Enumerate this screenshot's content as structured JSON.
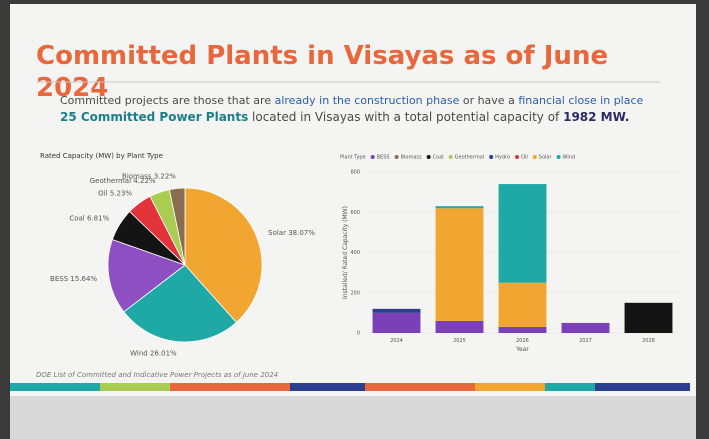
{
  "slide": {
    "title": "Committed Plants in Visayas as of June 2024",
    "description": [
      "Committed projects are those that are ",
      "already in the construction phase",
      " or have a ",
      "financial close in place"
    ],
    "summary": [
      "25 Committed Power Plants",
      " located in Visayas with a total potential capacity of ",
      "1982 MW."
    ],
    "footnote": "DOE List of Committed and Indicative Power Projects as of June 2024"
  },
  "chart_data": [
    {
      "type": "pie",
      "title": "Rated Capacity (MW) by Plant Type",
      "categories": [
        "Solar",
        "Wind",
        "BESS",
        "Coal",
        "Oil",
        "Geothermal",
        "Biomass"
      ],
      "values": [
        38.07,
        26.01,
        15.64,
        6.81,
        5.23,
        4.22,
        3.22
      ],
      "value_labels": [
        "38.07%",
        "26.01%",
        "15.64%",
        "6.81%",
        "5.23%",
        "4.22%",
        "3.22%"
      ],
      "colors": [
        "#f2a632",
        "#1fa9a6",
        "#8d4fc1",
        "#141414",
        "#e2333a",
        "#a9cc52",
        "#8a6d4e"
      ]
    },
    {
      "type": "stacked-bar",
      "legend_title": "Plant Type",
      "x_label": "Year",
      "y_label": "Installed/ Rated Capacity (MW)",
      "categories": [
        "2024",
        "2025",
        "2026",
        "2027",
        "2028"
      ],
      "series": [
        {
          "name": "BESS",
          "color": "#7b3fb8",
          "values": [
            100,
            60,
            30,
            50,
            0
          ]
        },
        {
          "name": "Biomass",
          "color": "#8a6d4e",
          "values": [
            0,
            0,
            0,
            0,
            0
          ]
        },
        {
          "name": "Coal",
          "color": "#141414",
          "values": [
            0,
            0,
            0,
            0,
            150
          ]
        },
        {
          "name": "Geothermal",
          "color": "#a9cc52",
          "values": [
            0,
            0,
            0,
            0,
            0
          ]
        },
        {
          "name": "Hydro",
          "color": "#2a3f8f",
          "values": [
            20,
            0,
            0,
            0,
            0
          ]
        },
        {
          "name": "Oil",
          "color": "#e2333a",
          "values": [
            0,
            0,
            0,
            0,
            0
          ]
        },
        {
          "name": "Solar",
          "color": "#f2a632",
          "values": [
            0,
            560,
            220,
            0,
            0
          ]
        },
        {
          "name": "Wind",
          "color": "#1fa9a6",
          "values": [
            0,
            10,
            490,
            0,
            0
          ]
        }
      ],
      "ylim": [
        0,
        800
      ],
      "yticks": [
        0,
        200,
        400,
        600,
        800
      ],
      "grid": true
    }
  ]
}
